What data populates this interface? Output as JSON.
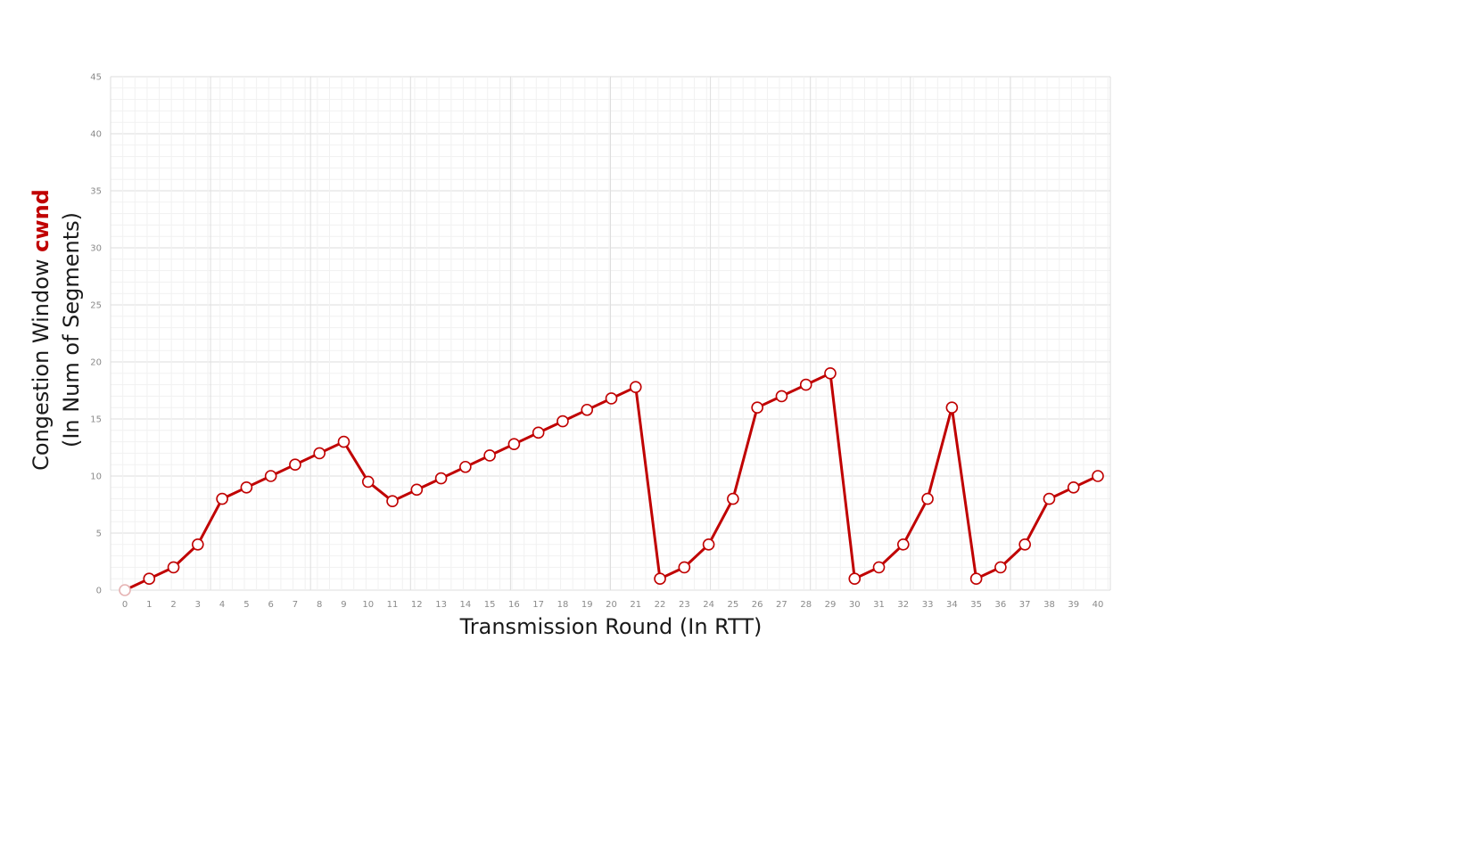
{
  "chart_data": {
    "type": "line",
    "xlabel": "Transmission Round (In RTT)",
    "ylabel": {
      "line1_prefix": "Congestion Window ",
      "line1_highlight": "cwnd",
      "line2": "(In Num of Segments)"
    },
    "xlim": [
      0,
      40
    ],
    "ylim": [
      0,
      45
    ],
    "y_ticks": [
      0,
      5,
      10,
      15,
      20,
      25,
      30,
      35,
      40,
      45
    ],
    "x_ticks": [
      0,
      1,
      2,
      3,
      4,
      5,
      6,
      7,
      8,
      9,
      10,
      11,
      12,
      13,
      14,
      15,
      16,
      17,
      18,
      19,
      20,
      21,
      22,
      23,
      24,
      25,
      26,
      27,
      28,
      29,
      30,
      31,
      32,
      33,
      34,
      35,
      36,
      37,
      38,
      39,
      40
    ],
    "grid": true,
    "series": [
      {
        "color": "#c00000",
        "x": [
          0,
          1,
          2,
          3,
          4,
          5,
          6,
          7,
          8,
          9,
          10,
          11,
          12,
          13,
          14,
          15,
          16,
          17,
          18,
          19,
          20,
          21,
          22,
          23,
          24,
          25,
          26,
          27,
          28,
          29,
          30,
          31,
          32,
          33,
          34,
          35,
          36,
          37,
          38,
          39,
          40
        ],
        "y": [
          0,
          1,
          2,
          4,
          8,
          9,
          10,
          11,
          12,
          13,
          9.5,
          7.8,
          8.8,
          9.8,
          10.8,
          11.8,
          12.8,
          13.8,
          14.8,
          15.8,
          16.8,
          17.8,
          1,
          2,
          4,
          8,
          16,
          17,
          18,
          19,
          1,
          2,
          4,
          8,
          16,
          1,
          2,
          4,
          8,
          9,
          10
        ]
      }
    ]
  }
}
